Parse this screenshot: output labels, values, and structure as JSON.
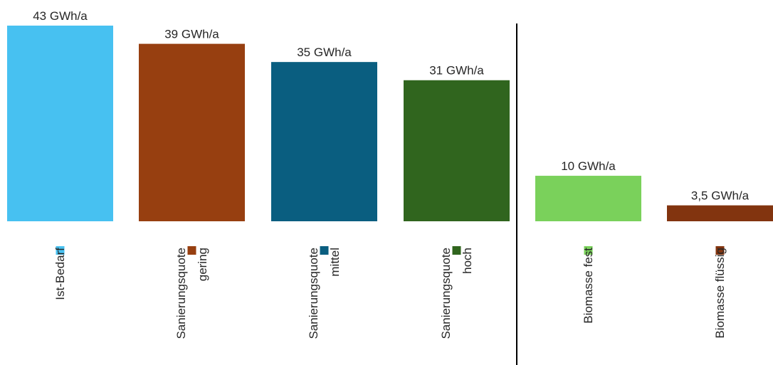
{
  "chart_data": {
    "type": "bar",
    "title": "",
    "xlabel": "",
    "ylabel": "",
    "ylim": [
      0,
      43
    ],
    "grid": false,
    "legend_placement": "bottom",
    "series": [
      {
        "name": "Ist-Bedarf",
        "value": 43,
        "label": "43 GWh/a",
        "color": "#47C1F1",
        "legend_lines": [
          "Ist-Bedarf"
        ]
      },
      {
        "name": "Sanierungsquote gering",
        "value": 39,
        "label": "39 GWh/a",
        "color": "#973F10",
        "legend_lines": [
          "Sanierungsquote",
          "gering"
        ]
      },
      {
        "name": "Sanierungsquote mittel",
        "value": 35,
        "label": "35 GWh/a",
        "color": "#0A5E80",
        "legend_lines": [
          "Sanierungsquote",
          "mittel"
        ]
      },
      {
        "name": "Sanierungsquote hoch",
        "value": 31,
        "label": "31 GWh/a",
        "color": "#30651E",
        "legend_lines": [
          "Sanierungsquote",
          "hoch"
        ]
      },
      {
        "name": "Biomasse fest",
        "value": 10,
        "label": "10 GWh/a",
        "color": "#7AD15B",
        "legend_lines": [
          "Biomasse fest"
        ]
      },
      {
        "name": "Biomasse flüssig",
        "value": 3.5,
        "label": "3,5 GWh/a",
        "color": "#82340F",
        "legend_lines": [
          "Biomasse flüssig"
        ]
      }
    ],
    "divider_after_index": 3
  }
}
